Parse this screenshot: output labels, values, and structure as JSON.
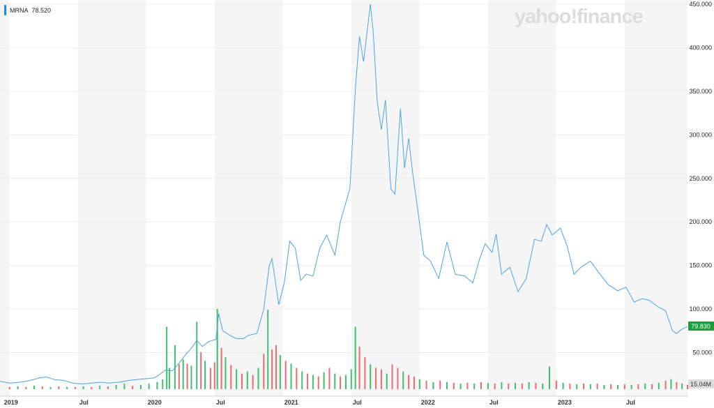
{
  "legend": {
    "symbol": "MRNA",
    "value": "78.520"
  },
  "watermark": "yahoo!finance",
  "colors": {
    "line": "#4aa3df",
    "up_volume": "#3fbf70",
    "down_volume": "#ef6b6b",
    "band": "#f5f5f5",
    "price_tag": "#1a9e3f",
    "volume_tag": "#dddddd",
    "legend_swatch": "#1e88e5"
  },
  "chart_data": {
    "type": "line",
    "title": "",
    "xlabel": "",
    "ylabel": "",
    "ylim": [
      0,
      450
    ],
    "y_ticks": [
      "450.000",
      "400.000",
      "350.000",
      "300.000",
      "250.000",
      "200.000",
      "150.000",
      "100.000",
      "50.000"
    ],
    "y_tick_values": [
      450,
      400,
      350,
      300,
      250,
      200,
      150,
      100,
      50
    ],
    "x_ticks": [
      "2019",
      "Jul",
      "2020",
      "Jul",
      "2021",
      "Jul",
      "2022",
      "Jul",
      "2023",
      "Jul"
    ],
    "x_tick_years": [
      2019.0,
      2019.5,
      2020.0,
      2020.5,
      2021.0,
      2021.5,
      2022.0,
      2022.5,
      2023.0,
      2023.5
    ],
    "x_range_years": [
      2018.93,
      2023.96
    ],
    "grid": true,
    "price_label": "79.830",
    "volume_label": "15.04M",
    "series": [
      {
        "name": "MRNA",
        "points": [
          [
            2018.93,
            17
          ],
          [
            2019.0,
            15
          ],
          [
            2019.08,
            16
          ],
          [
            2019.15,
            18
          ],
          [
            2019.22,
            21
          ],
          [
            2019.27,
            22
          ],
          [
            2019.33,
            19
          ],
          [
            2019.4,
            18
          ],
          [
            2019.46,
            15
          ],
          [
            2019.53,
            14
          ],
          [
            2019.6,
            15
          ],
          [
            2019.67,
            16
          ],
          [
            2019.72,
            15
          ],
          [
            2019.8,
            16
          ],
          [
            2019.87,
            18
          ],
          [
            2019.93,
            19
          ],
          [
            2020.0,
            20
          ],
          [
            2020.06,
            21
          ],
          [
            2020.1,
            25
          ],
          [
            2020.14,
            30
          ],
          [
            2020.19,
            29
          ],
          [
            2020.23,
            36
          ],
          [
            2020.29,
            48
          ],
          [
            2020.33,
            55
          ],
          [
            2020.37,
            64
          ],
          [
            2020.41,
            57
          ],
          [
            2020.46,
            63
          ],
          [
            2020.51,
            65
          ],
          [
            2020.53,
            95
          ],
          [
            2020.56,
            75
          ],
          [
            2020.61,
            70
          ],
          [
            2020.66,
            66
          ],
          [
            2020.71,
            66
          ],
          [
            2020.75,
            70
          ],
          [
            2020.81,
            72
          ],
          [
            2020.86,
            100
          ],
          [
            2020.9,
            150
          ],
          [
            2020.92,
            158
          ],
          [
            2020.97,
            105
          ],
          [
            2021.01,
            130
          ],
          [
            2021.05,
            178
          ],
          [
            2021.09,
            170
          ],
          [
            2021.13,
            133
          ],
          [
            2021.17,
            140
          ],
          [
            2021.22,
            138
          ],
          [
            2021.27,
            170
          ],
          [
            2021.32,
            185
          ],
          [
            2021.38,
            162
          ],
          [
            2021.42,
            200
          ],
          [
            2021.45,
            217
          ],
          [
            2021.49,
            238
          ],
          [
            2021.53,
            353
          ],
          [
            2021.56,
            413
          ],
          [
            2021.59,
            384
          ],
          [
            2021.64,
            450
          ],
          [
            2021.66,
            420
          ],
          [
            2021.69,
            338
          ],
          [
            2021.72,
            306
          ],
          [
            2021.75,
            340
          ],
          [
            2021.79,
            238
          ],
          [
            2021.82,
            232
          ],
          [
            2021.86,
            330
          ],
          [
            2021.89,
            262
          ],
          [
            2021.92,
            296
          ],
          [
            2021.95,
            255
          ],
          [
            2021.99,
            210
          ],
          [
            2022.03,
            162
          ],
          [
            2022.08,
            155
          ],
          [
            2022.14,
            135
          ],
          [
            2022.2,
            177
          ],
          [
            2022.26,
            140
          ],
          [
            2022.33,
            138
          ],
          [
            2022.39,
            130
          ],
          [
            2022.44,
            158
          ],
          [
            2022.48,
            175
          ],
          [
            2022.53,
            165
          ],
          [
            2022.56,
            186
          ],
          [
            2022.6,
            140
          ],
          [
            2022.66,
            148
          ],
          [
            2022.72,
            120
          ],
          [
            2022.78,
            135
          ],
          [
            2022.84,
            180
          ],
          [
            2022.89,
            178
          ],
          [
            2022.93,
            197
          ],
          [
            2022.97,
            185
          ],
          [
            2023.03,
            193
          ],
          [
            2023.08,
            172
          ],
          [
            2023.13,
            140
          ],
          [
            2023.18,
            148
          ],
          [
            2023.25,
            155
          ],
          [
            2023.32,
            140
          ],
          [
            2023.38,
            128
          ],
          [
            2023.45,
            121
          ],
          [
            2023.51,
            125
          ],
          [
            2023.57,
            108
          ],
          [
            2023.63,
            112
          ],
          [
            2023.68,
            110
          ],
          [
            2023.75,
            102
          ],
          [
            2023.8,
            98
          ],
          [
            2023.85,
            75
          ],
          [
            2023.88,
            72
          ],
          [
            2023.91,
            76
          ],
          [
            2023.96,
            80
          ]
        ]
      }
    ],
    "volume_bars": [
      [
        2019.0,
        3,
        "down"
      ],
      [
        2019.06,
        4,
        "up"
      ],
      [
        2019.12,
        3,
        "down"
      ],
      [
        2019.18,
        5,
        "up"
      ],
      [
        2019.24,
        4,
        "down"
      ],
      [
        2019.3,
        3,
        "up"
      ],
      [
        2019.36,
        4,
        "down"
      ],
      [
        2019.42,
        3,
        "up"
      ],
      [
        2019.48,
        3,
        "down"
      ],
      [
        2019.54,
        4,
        "up"
      ],
      [
        2019.6,
        3,
        "down"
      ],
      [
        2019.66,
        5,
        "up"
      ],
      [
        2019.72,
        4,
        "down"
      ],
      [
        2019.78,
        6,
        "up"
      ],
      [
        2019.84,
        8,
        "up"
      ],
      [
        2019.9,
        5,
        "down"
      ],
      [
        2019.96,
        6,
        "up"
      ],
      [
        2020.02,
        8,
        "up"
      ],
      [
        2020.08,
        10,
        "up"
      ],
      [
        2020.12,
        14,
        "up"
      ],
      [
        2020.15,
        88,
        "up"
      ],
      [
        2020.17,
        30,
        "up"
      ],
      [
        2020.21,
        62,
        "up"
      ],
      [
        2020.24,
        35,
        "down"
      ],
      [
        2020.27,
        42,
        "up"
      ],
      [
        2020.3,
        36,
        "down"
      ],
      [
        2020.33,
        33,
        "up"
      ],
      [
        2020.37,
        95,
        "up"
      ],
      [
        2020.4,
        52,
        "down"
      ],
      [
        2020.43,
        40,
        "up"
      ],
      [
        2020.47,
        30,
        "down"
      ],
      [
        2020.5,
        38,
        "down"
      ],
      [
        2020.52,
        113,
        "up"
      ],
      [
        2020.55,
        58,
        "down"
      ],
      [
        2020.58,
        45,
        "up"
      ],
      [
        2020.62,
        34,
        "down"
      ],
      [
        2020.66,
        28,
        "up"
      ],
      [
        2020.7,
        22,
        "down"
      ],
      [
        2020.74,
        25,
        "up"
      ],
      [
        2020.78,
        20,
        "down"
      ],
      [
        2020.82,
        30,
        "up"
      ],
      [
        2020.86,
        50,
        "down"
      ],
      [
        2020.89,
        112,
        "up"
      ],
      [
        2020.92,
        56,
        "down"
      ],
      [
        2020.95,
        62,
        "down"
      ],
      [
        2020.98,
        48,
        "up"
      ],
      [
        2021.02,
        40,
        "down"
      ],
      [
        2021.06,
        36,
        "up"
      ],
      [
        2021.1,
        30,
        "down"
      ],
      [
        2021.14,
        25,
        "up"
      ],
      [
        2021.18,
        22,
        "down"
      ],
      [
        2021.22,
        20,
        "up"
      ],
      [
        2021.26,
        18,
        "down"
      ],
      [
        2021.3,
        24,
        "up"
      ],
      [
        2021.34,
        30,
        "down"
      ],
      [
        2021.38,
        22,
        "up"
      ],
      [
        2021.42,
        18,
        "down"
      ],
      [
        2021.46,
        20,
        "up"
      ],
      [
        2021.5,
        28,
        "up"
      ],
      [
        2021.53,
        88,
        "up"
      ],
      [
        2021.56,
        60,
        "down"
      ],
      [
        2021.6,
        45,
        "down"
      ],
      [
        2021.64,
        35,
        "up"
      ],
      [
        2021.68,
        30,
        "down"
      ],
      [
        2021.72,
        28,
        "down"
      ],
      [
        2021.76,
        22,
        "up"
      ],
      [
        2021.8,
        35,
        "down"
      ],
      [
        2021.84,
        30,
        "down"
      ],
      [
        2021.88,
        25,
        "up"
      ],
      [
        2021.92,
        20,
        "down"
      ],
      [
        2021.96,
        18,
        "down"
      ],
      [
        2022.0,
        14,
        "up"
      ],
      [
        2022.05,
        12,
        "down"
      ],
      [
        2022.1,
        10,
        "up"
      ],
      [
        2022.15,
        12,
        "down"
      ],
      [
        2022.2,
        10,
        "up"
      ],
      [
        2022.25,
        9,
        "down"
      ],
      [
        2022.3,
        8,
        "up"
      ],
      [
        2022.35,
        9,
        "down"
      ],
      [
        2022.4,
        8,
        "up"
      ],
      [
        2022.45,
        10,
        "down"
      ],
      [
        2022.5,
        9,
        "up"
      ],
      [
        2022.55,
        8,
        "down"
      ],
      [
        2022.6,
        10,
        "up"
      ],
      [
        2022.65,
        8,
        "down"
      ],
      [
        2022.7,
        9,
        "up"
      ],
      [
        2022.75,
        8,
        "down"
      ],
      [
        2022.8,
        10,
        "up"
      ],
      [
        2022.85,
        9,
        "down"
      ],
      [
        2022.9,
        8,
        "up"
      ],
      [
        2022.95,
        32,
        "up"
      ],
      [
        2023.0,
        12,
        "down"
      ],
      [
        2023.05,
        9,
        "up"
      ],
      [
        2023.1,
        8,
        "down"
      ],
      [
        2023.15,
        7,
        "up"
      ],
      [
        2023.2,
        8,
        "down"
      ],
      [
        2023.25,
        7,
        "up"
      ],
      [
        2023.3,
        8,
        "down"
      ],
      [
        2023.35,
        6,
        "up"
      ],
      [
        2023.4,
        7,
        "down"
      ],
      [
        2023.45,
        6,
        "up"
      ],
      [
        2023.5,
        7,
        "down"
      ],
      [
        2023.55,
        6,
        "up"
      ],
      [
        2023.6,
        7,
        "down"
      ],
      [
        2023.65,
        8,
        "up"
      ],
      [
        2023.7,
        7,
        "down"
      ],
      [
        2023.75,
        9,
        "up"
      ],
      [
        2023.8,
        12,
        "down"
      ],
      [
        2023.84,
        14,
        "up"
      ],
      [
        2023.88,
        10,
        "down"
      ],
      [
        2023.92,
        8,
        "up"
      ],
      [
        2023.96,
        6,
        "down"
      ]
    ]
  }
}
